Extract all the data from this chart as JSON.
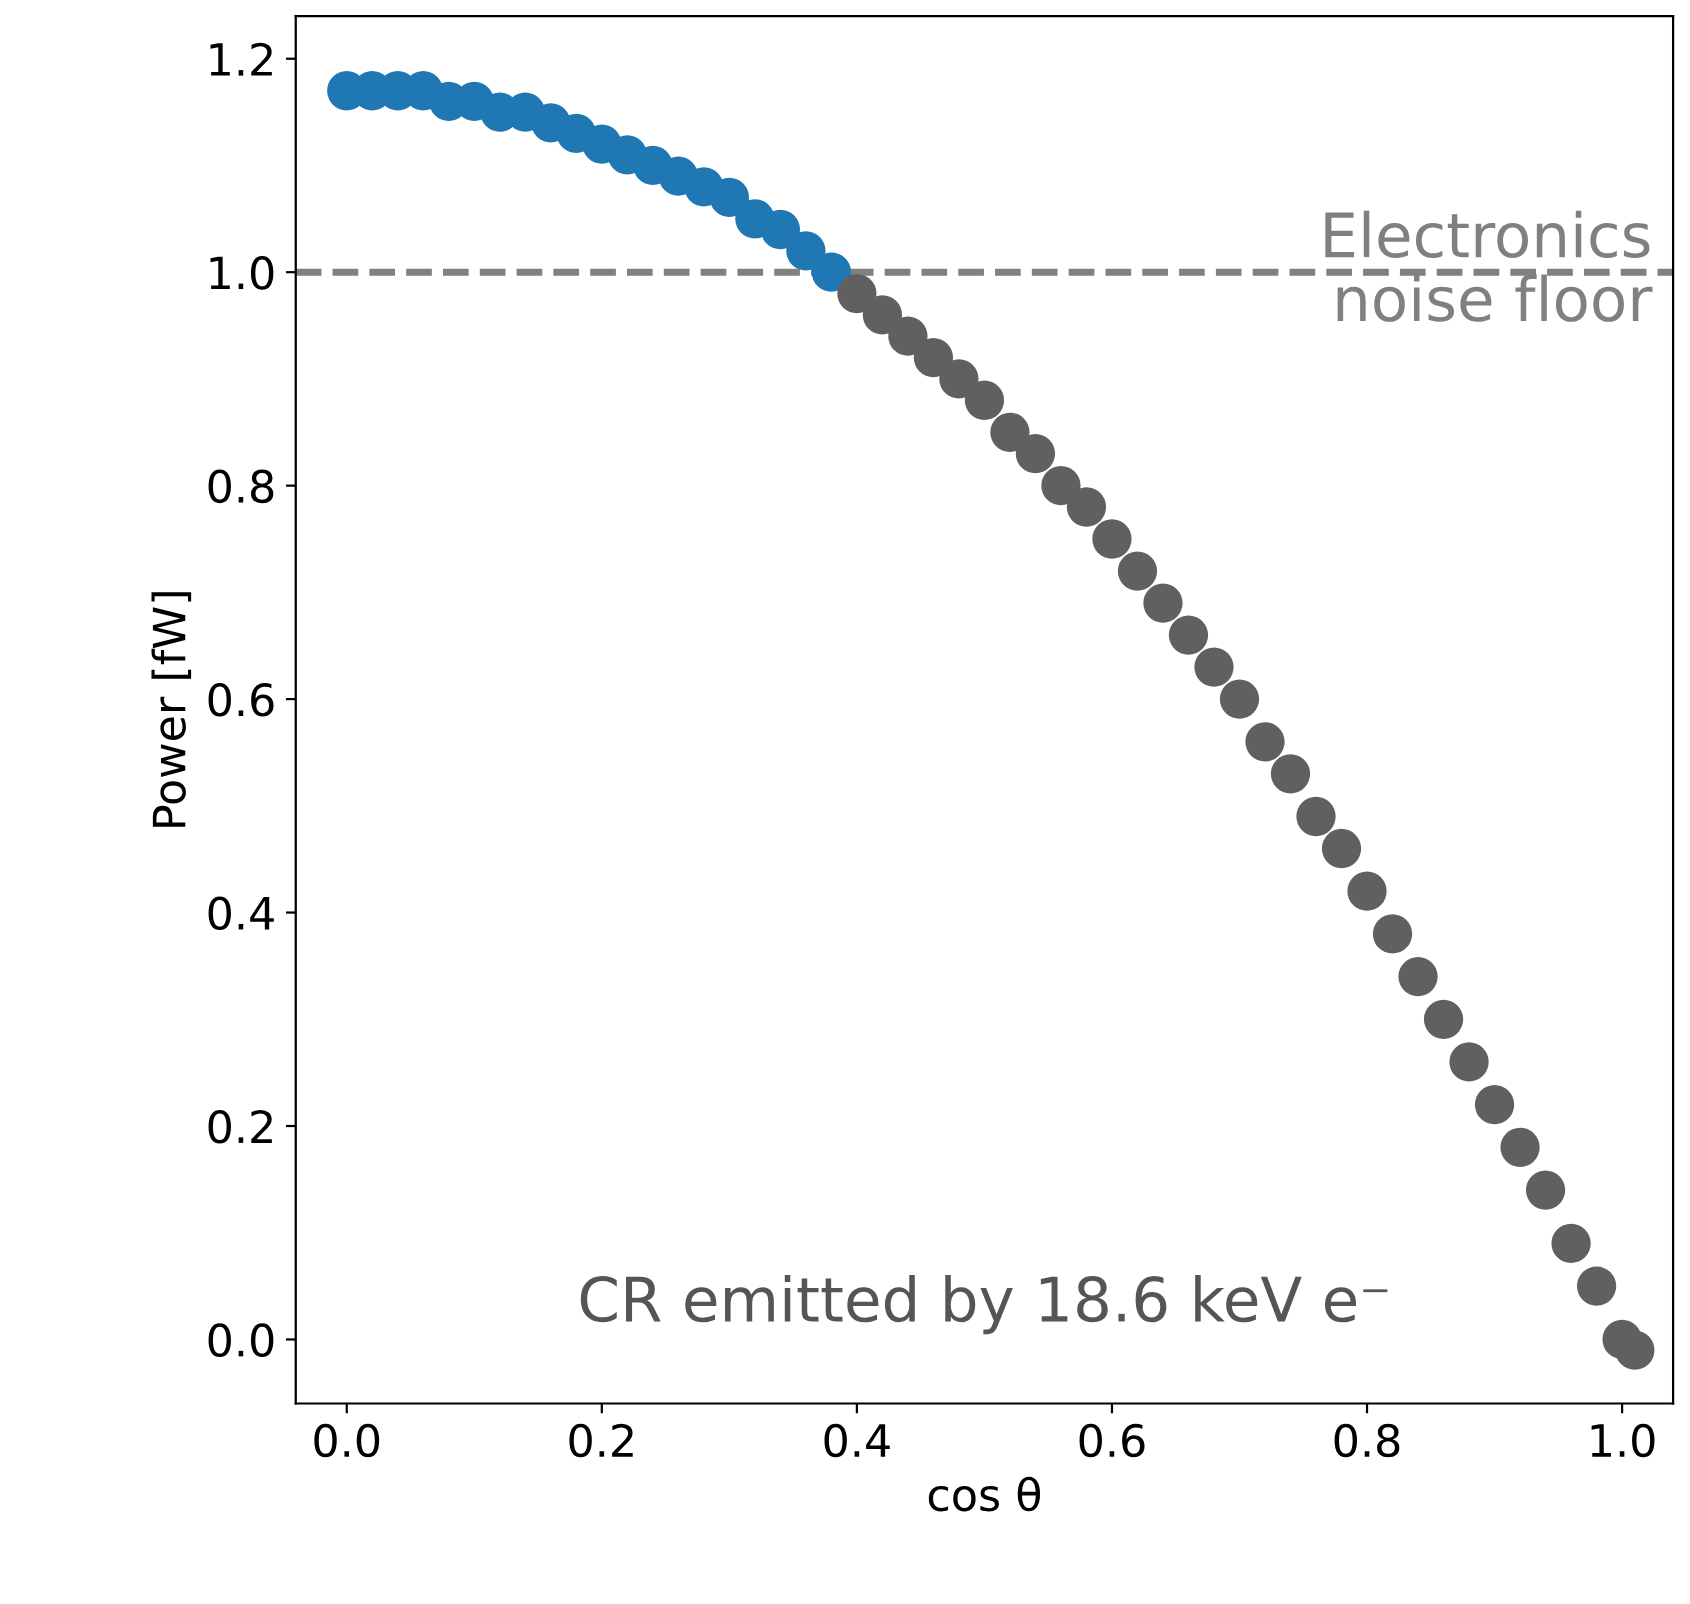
{
  "chart_data": {
    "type": "scatter",
    "xlabel": "cos θ",
    "ylabel": "Power [fW]",
    "xlim": [
      -0.04,
      1.04
    ],
    "ylim": [
      -0.06,
      1.24
    ],
    "xticks": [
      {
        "value": 0,
        "label": "0.0"
      },
      {
        "value": 0.2,
        "label": "0.2"
      },
      {
        "value": 0.4,
        "label": "0.4"
      },
      {
        "value": 0.6,
        "label": "0.6"
      },
      {
        "value": 0.8,
        "label": "0.8"
      },
      {
        "value": 1,
        "label": "1.0"
      }
    ],
    "yticks": [
      {
        "value": 0,
        "label": "0.0"
      },
      {
        "value": 0.2,
        "label": "0.2"
      },
      {
        "value": 0.4,
        "label": "0.4"
      },
      {
        "value": 0.6,
        "label": "0.6"
      },
      {
        "value": 0.8,
        "label": "0.8"
      },
      {
        "value": 1,
        "label": "1.0"
      },
      1.2
    ],
    "marker": "circle",
    "grid": false,
    "legend": false,
    "series": [
      {
        "color": "#1f77b4",
        "x": [
          0,
          0.02,
          0.04,
          0.06,
          0.08,
          0.1,
          0.12,
          0.14,
          0.16,
          0.18,
          0.2,
          0.22,
          0.24,
          0.26,
          0.28,
          0.3,
          0.32,
          0.34,
          0.36,
          0.38
        ],
        "values": [
          1.17,
          1.17,
          1.17,
          1.17,
          1.16,
          1.16,
          1.15,
          1.15,
          1.14,
          1.13,
          1.12,
          1.11,
          1.1,
          1.09,
          1.08,
          1.07,
          1.05,
          1.04,
          1.02,
          1.0
        ]
      },
      {
        "color": "#606060",
        "x": [
          0.4,
          0.42,
          0.44,
          0.46,
          0.48,
          0.5,
          0.52,
          0.54,
          0.56,
          0.58,
          0.6,
          0.62,
          0.64,
          0.66,
          0.68,
          0.7,
          0.72,
          0.74,
          0.76,
          0.78,
          0.8,
          0.82,
          0.84,
          0.86,
          0.88,
          0.9,
          0.92,
          0.94,
          0.96,
          0.98,
          1.0,
          1.01
        ],
        "values": [
          0.98,
          0.96,
          0.94,
          0.92,
          0.9,
          0.88,
          0.85,
          0.83,
          0.8,
          0.78,
          0.75,
          0.72,
          0.69,
          0.66,
          0.63,
          0.6,
          0.56,
          0.53,
          0.49,
          0.46,
          0.42,
          0.38,
          0.34,
          0.3,
          0.26,
          0.22,
          0.18,
          0.14,
          0.09,
          0.05,
          0.0,
          -0.01
        ]
      }
    ],
    "ref_lines": [
      {
        "axis": "y",
        "value": 1.0,
        "label": "Electronics\nnoise floor",
        "color": "#808080",
        "line_style": "dashed"
      }
    ],
    "annotations": [
      "CR emitted by 18.6 keV e⁻"
    ]
  }
}
